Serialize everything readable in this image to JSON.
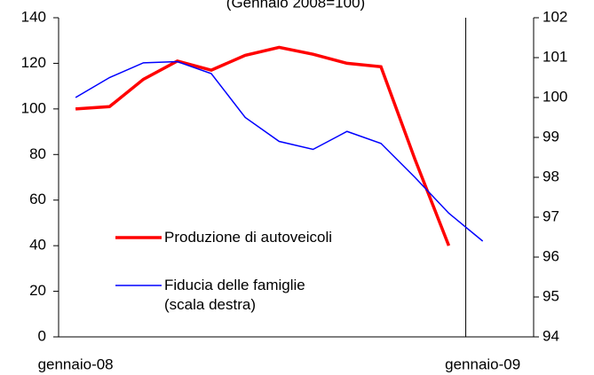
{
  "chart_data": {
    "type": "line",
    "subtitle": "(Gennaio 2008=100)",
    "categories": [
      "gennaio-08",
      null,
      null,
      null,
      null,
      null,
      null,
      null,
      null,
      null,
      null,
      null,
      "gennaio-09",
      null
    ],
    "series": [
      {
        "name": "Produzione di autoveicoli",
        "color": "#ff0000",
        "values": [
          100,
          101,
          113,
          121,
          117,
          123.5,
          127,
          124,
          120,
          118.5,
          78,
          40,
          null,
          null
        ]
      },
      {
        "name": "Fiducia delle famiglie (scala destra)",
        "color": "#0000ff",
        "axis": "y2",
        "values": [
          100.0,
          100.5,
          100.87,
          100.9,
          100.6,
          99.5,
          98.9,
          98.7,
          99.15,
          98.85,
          98.0,
          97.1,
          96.4,
          null
        ]
      }
    ],
    "ylim": [
      0,
      140
    ],
    "yticks": [
      0,
      20,
      40,
      60,
      80,
      100,
      120,
      140
    ],
    "y2lim": [
      94,
      102
    ],
    "y2ticks": [
      94,
      95,
      96,
      97,
      98,
      99,
      100,
      101,
      102
    ],
    "grid": false
  }
}
